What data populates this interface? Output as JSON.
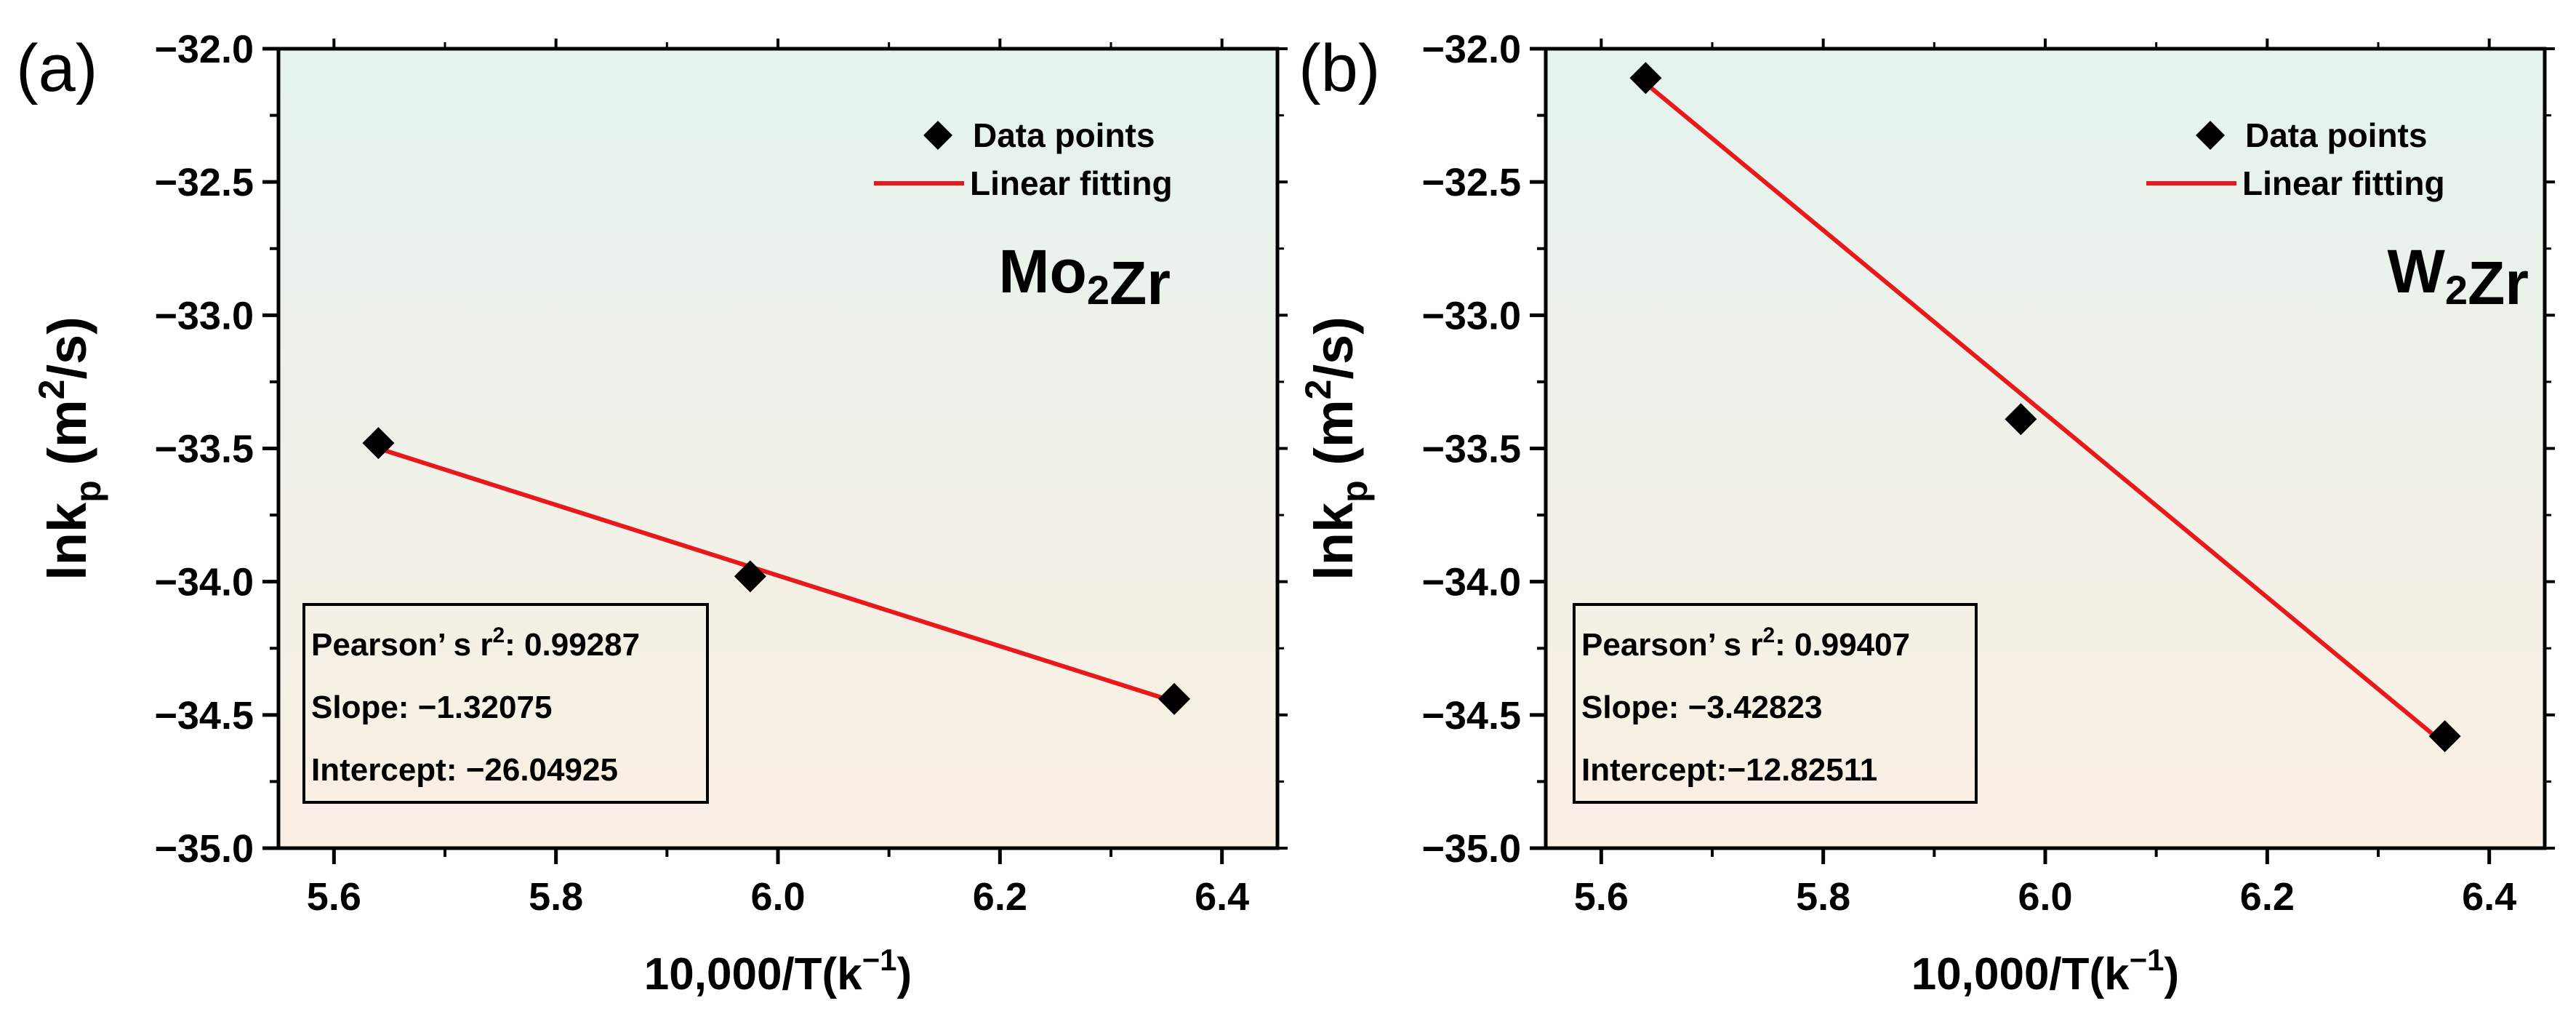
{
  "panels": [
    {
      "label": "(a)",
      "compound": "Mo₂Zr",
      "stats": {
        "pearson": "Pearson’ s r²: 0.99287",
        "slope": "Slope: −1.32075",
        "intercept": "Intercept: −26.04925"
      }
    },
    {
      "label": "(b)",
      "compound": "W₂Zr",
      "stats": {
        "pearson": "Pearson’ s r²: 0.99407",
        "slope": "Slope: −3.42823",
        "intercept": "Intercept:−12.82511"
      }
    }
  ],
  "chart_data": [
    {
      "type": "scatter",
      "xlabel": "10,000/T(k⁻¹)",
      "ylabel": "lnkp (m²/s)",
      "xlim": [
        5.55,
        6.45
      ],
      "ylim": [
        -35.0,
        -32.0
      ],
      "xticks": [
        "5.6",
        "5.8",
        "6.0",
        "6.2",
        "6.4"
      ],
      "yticks": [
        "−32.0",
        "−32.5",
        "−33.0",
        "−33.5",
        "−34.0",
        "−34.5",
        "−35.0"
      ],
      "legend": [
        "Data points",
        "Linear fitting"
      ],
      "legend_position": "top-right",
      "series": [
        {
          "name": "Data points",
          "x": [
            5.64,
            5.975,
            6.357
          ],
          "y": [
            -33.48,
            -33.98,
            -34.44
          ]
        },
        {
          "name": "Linear fitting",
          "x": [
            5.64,
            6.357
          ],
          "y": [
            -33.5,
            -34.45
          ]
        }
      ],
      "colors": {
        "points": "#000000",
        "fit": "#e8181b"
      },
      "background_gradient": [
        "#e4f3ee",
        "#fbefe3"
      ],
      "grid": false
    },
    {
      "type": "scatter",
      "xlabel": "10,000/T(k⁻¹)",
      "ylabel": "lnkp (m²/s)",
      "xlim": [
        5.55,
        6.45
      ],
      "ylim": [
        -35.0,
        -32.0
      ],
      "xticks": [
        "5.6",
        "5.8",
        "6.0",
        "6.2",
        "6.4"
      ],
      "yticks": [
        "−32.0",
        "−32.5",
        "−33.0",
        "−33.5",
        "−34.0",
        "−34.5",
        "−35.0"
      ],
      "legend": [
        "Data points",
        "Linear fitting"
      ],
      "legend_position": "top-right",
      "series": [
        {
          "name": "Data points",
          "x": [
            5.64,
            5.978,
            6.36
          ],
          "y": [
            -32.11,
            -33.39,
            -34.58
          ]
        },
        {
          "name": "Linear fitting",
          "x": [
            5.64,
            6.36
          ],
          "y": [
            -32.13,
            -34.61
          ]
        }
      ],
      "colors": {
        "points": "#000000",
        "fit": "#e8181b"
      },
      "background_gradient": [
        "#e4f3ee",
        "#fbefe3"
      ],
      "grid": false
    }
  ]
}
